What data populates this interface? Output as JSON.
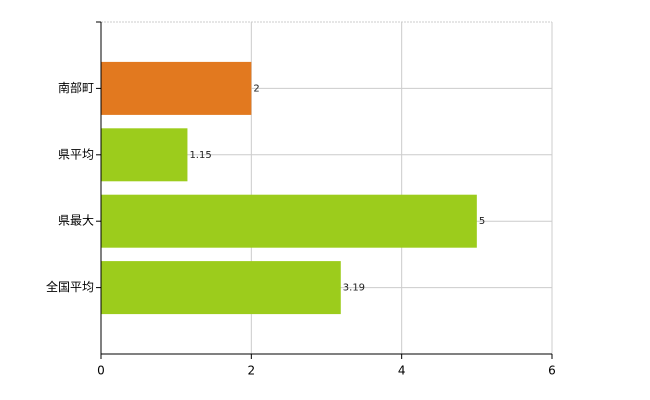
{
  "chart_data": {
    "type": "barh",
    "categories": [
      "南部町",
      "県平均",
      "県最大",
      "全国平均"
    ],
    "values": [
      2,
      1.15,
      5,
      3.19
    ],
    "colors": [
      "#e2791f",
      "#9ccc1c",
      "#9ccc1c",
      "#9ccc1c"
    ],
    "xlim": [
      0,
      6
    ],
    "xticks": [
      0,
      2,
      4,
      6
    ],
    "grid": true
  }
}
